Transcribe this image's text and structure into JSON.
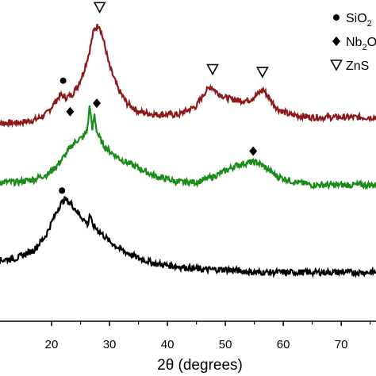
{
  "chart_data": {
    "type": "line",
    "title": "",
    "xlabel": "2θ (degrees)",
    "ylabel": "",
    "xlim": [
      10,
      76
    ],
    "ylim": [
      0,
      1.05
    ],
    "xticks": [
      20,
      30,
      40,
      50,
      60,
      70
    ],
    "grid": false,
    "legend": {
      "placement": "top-right",
      "entries": [
        {
          "marker": "circle",
          "label": "SiO",
          "sub": "2"
        },
        {
          "marker": "diamond",
          "label": "Nb",
          "sub": "2",
          "suffix": "O"
        },
        {
          "marker": "triangle-down",
          "label": "ZnS"
        }
      ]
    },
    "series": [
      {
        "color": "#8b1a1a",
        "x": [
          10,
          14,
          17,
          19,
          20.5,
          21.5,
          22.5,
          23.5,
          24.5,
          25.5,
          26.5,
          27.3,
          28.2,
          29,
          30,
          31.5,
          33,
          35,
          38,
          42,
          45,
          46.5,
          47.5,
          48.5,
          50,
          52,
          54,
          55.5,
          56.5,
          57.5,
          59,
          61,
          65,
          70,
          76
        ],
        "y": [
          0.67,
          0.67,
          0.68,
          0.7,
          0.74,
          0.77,
          0.76,
          0.77,
          0.8,
          0.85,
          0.92,
          1.0,
          1.02,
          0.96,
          0.87,
          0.79,
          0.74,
          0.71,
          0.7,
          0.7,
          0.73,
          0.78,
          0.8,
          0.78,
          0.76,
          0.75,
          0.75,
          0.77,
          0.79,
          0.76,
          0.72,
          0.7,
          0.69,
          0.69,
          0.69
        ]
      },
      {
        "color": "#1a8c1a",
        "x": [
          10,
          14,
          17,
          19.5,
          21,
          22.5,
          23.5,
          24.5,
          25.5,
          26.2,
          26.6,
          27,
          27.4,
          27.8,
          28.2,
          29,
          30,
          32,
          35,
          38,
          42,
          45,
          48,
          50,
          52,
          54,
          55.5,
          57,
          59,
          62,
          65,
          70,
          76
        ],
        "y": [
          0.46,
          0.46,
          0.47,
          0.49,
          0.52,
          0.56,
          0.59,
          0.61,
          0.62,
          0.65,
          0.74,
          0.64,
          0.7,
          0.64,
          0.62,
          0.59,
          0.57,
          0.54,
          0.51,
          0.48,
          0.46,
          0.46,
          0.48,
          0.5,
          0.52,
          0.53,
          0.53,
          0.51,
          0.48,
          0.46,
          0.45,
          0.45,
          0.45
        ]
      },
      {
        "color": "#000000",
        "x": [
          10,
          14,
          17,
          19,
          20.5,
          21.5,
          22.3,
          23.5,
          25,
          26.3,
          26.6,
          27,
          28.5,
          30,
          32,
          35,
          38,
          42,
          46,
          50,
          55,
          60,
          65,
          70,
          76
        ],
        "y": [
          0.18,
          0.19,
          0.22,
          0.27,
          0.34,
          0.38,
          0.4,
          0.38,
          0.34,
          0.31,
          0.35,
          0.31,
          0.28,
          0.25,
          0.22,
          0.19,
          0.17,
          0.16,
          0.15,
          0.15,
          0.14,
          0.14,
          0.14,
          0.14,
          0.14
        ]
      }
    ],
    "markers": [
      {
        "type": "circle",
        "x": 22.0,
        "y": 0.82,
        "color": "#000000"
      },
      {
        "type": "triangle-down",
        "x": 28.3,
        "y": 1.08,
        "color": "#000000"
      },
      {
        "type": "triangle-down",
        "x": 47.8,
        "y": 0.86,
        "color": "#000000"
      },
      {
        "type": "triangle-down",
        "x": 56.4,
        "y": 0.85,
        "color": "#000000"
      },
      {
        "type": "diamond",
        "x": 23.2,
        "y": 0.71,
        "color": "#000000"
      },
      {
        "type": "diamond",
        "x": 27.8,
        "y": 0.74,
        "color": "#000000"
      },
      {
        "type": "diamond",
        "x": 54.8,
        "y": 0.57,
        "color": "#000000"
      },
      {
        "type": "circle",
        "x": 21.8,
        "y": 0.43,
        "color": "#000000"
      }
    ]
  }
}
